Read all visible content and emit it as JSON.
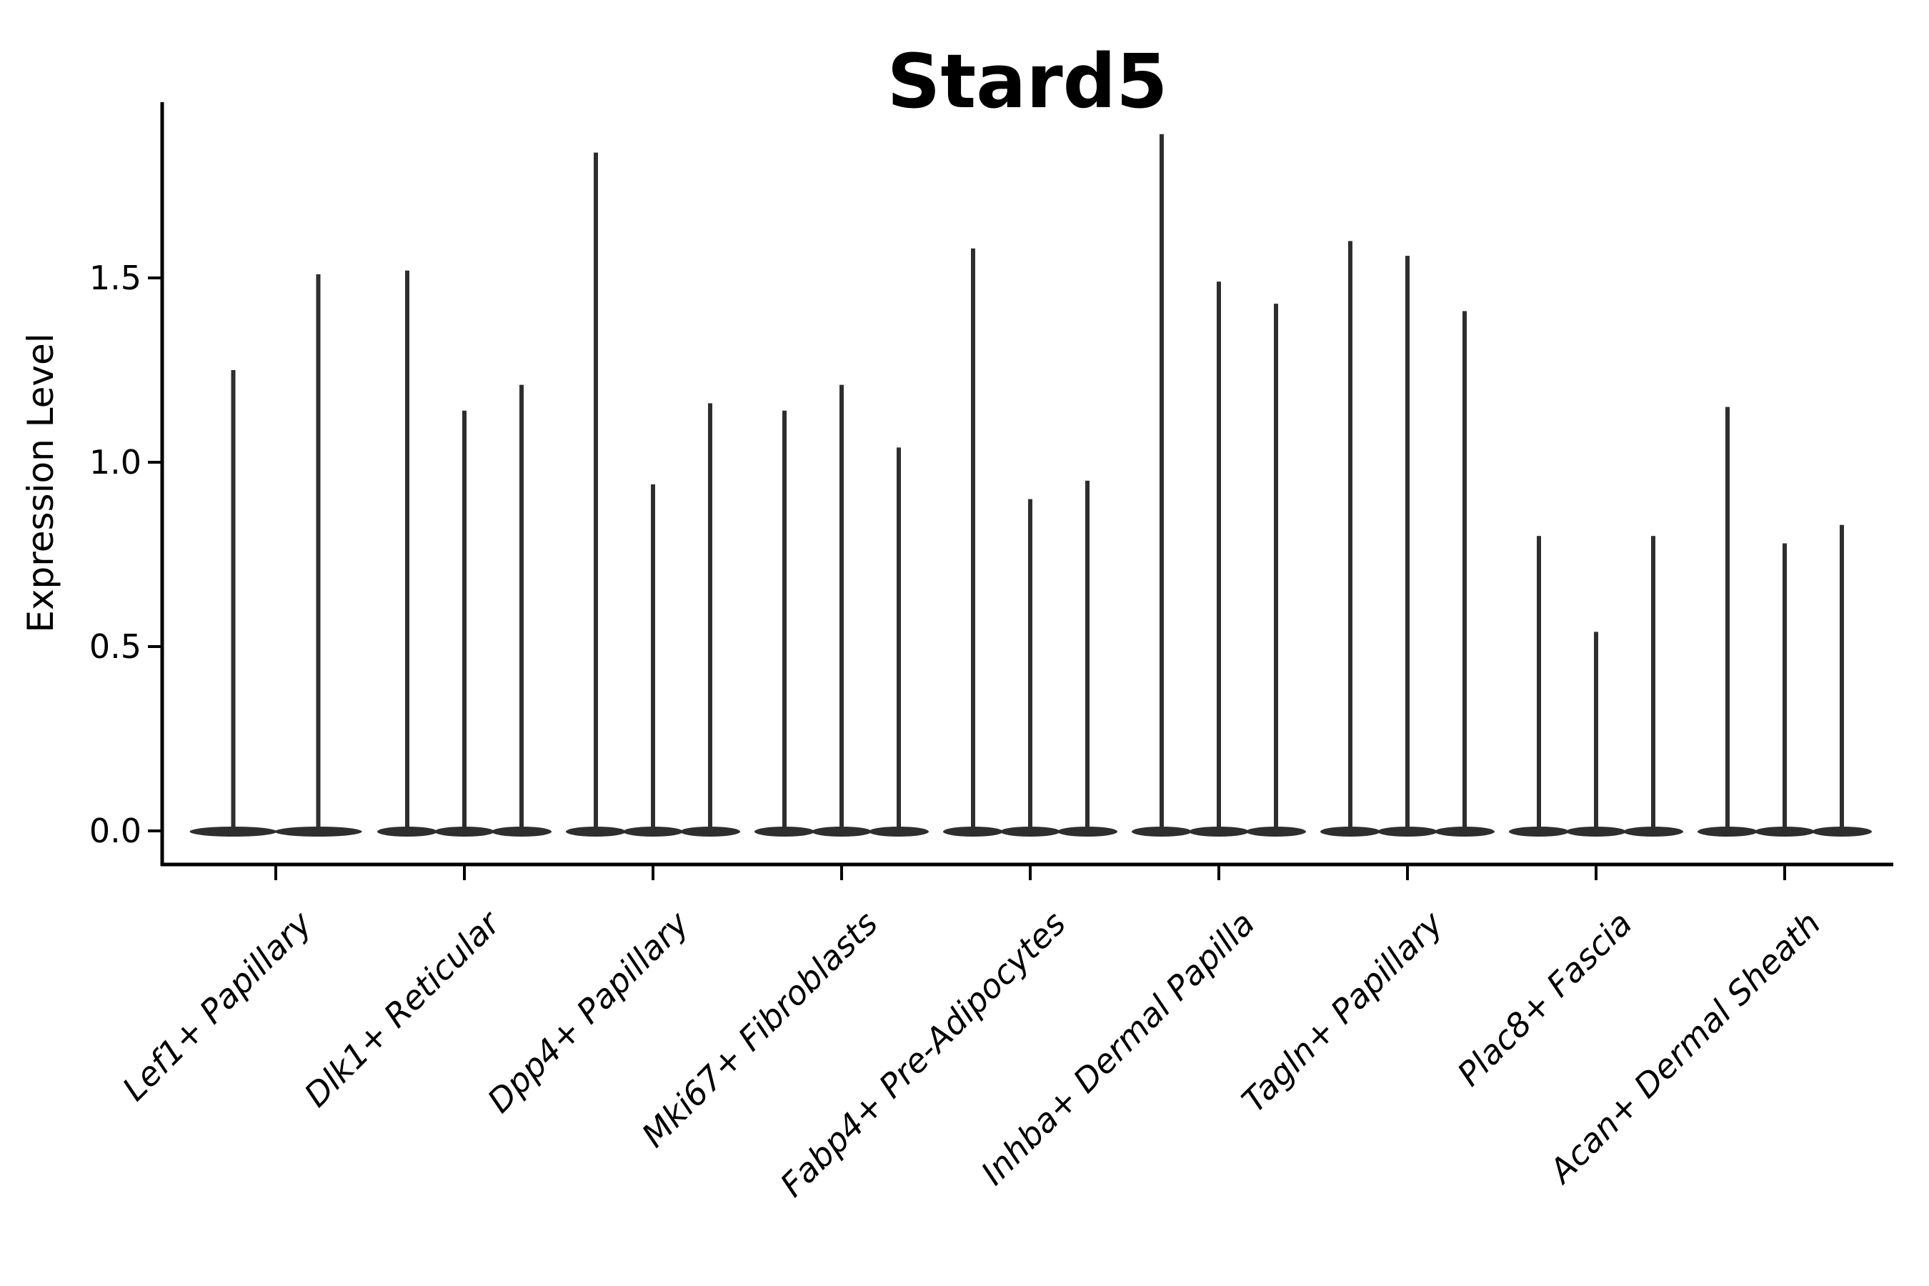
{
  "title": "Stard5",
  "axes": {
    "ylabel": "Expression Level",
    "ytick_labels": [
      "0.0",
      "0.5",
      "1.0",
      "1.5"
    ]
  },
  "colors": {
    "violin": "#2e2e2e",
    "axis": "#000000",
    "background": "#ffffff"
  },
  "chart_data": {
    "type": "violin",
    "title": "Stard5",
    "xlabel": "",
    "ylabel": "Expression Level",
    "ylim": [
      0,
      1.98
    ],
    "yticks": [
      0.0,
      0.5,
      1.0,
      1.5
    ],
    "grid": false,
    "legend": null,
    "violin_shape": "needle (mass at 0 with thin tail up to max)",
    "categories": [
      "Lef1+ Papillary",
      "Dlk1+ Reticular",
      "Dpp4+ Papillary",
      "Mki67+ Fibroblasts",
      "Fabp4+ Pre-Adipocytes",
      "Inhba+ Dermal Papilla",
      "Tagln+ Papillary",
      "Plac8+ Fascia",
      "Acan+ Dermal Sheath"
    ],
    "groups": [
      {
        "category": "Lef1+ Papillary",
        "violin_min": 0,
        "violin_max_values": [
          1.25,
          1.51
        ]
      },
      {
        "category": "Dlk1+ Reticular",
        "violin_min": 0,
        "violin_max_values": [
          1.52,
          1.14,
          1.21
        ]
      },
      {
        "category": "Dpp4+ Papillary",
        "violin_min": 0,
        "violin_max_values": [
          1.84,
          0.94,
          1.16
        ]
      },
      {
        "category": "Mki67+ Fibroblasts",
        "violin_min": 0,
        "violin_max_values": [
          1.14,
          1.21,
          1.04
        ]
      },
      {
        "category": "Fabp4+ Pre-Adipocytes",
        "violin_min": 0,
        "violin_max_values": [
          1.58,
          0.9,
          0.95
        ]
      },
      {
        "category": "Inhba+ Dermal Papilla",
        "violin_min": 0,
        "violin_max_values": [
          1.89,
          1.49,
          1.43
        ]
      },
      {
        "category": "Tagln+ Papillary",
        "violin_min": 0,
        "violin_max_values": [
          1.6,
          1.56,
          1.41
        ]
      },
      {
        "category": "Plac8+ Fascia",
        "violin_min": 0,
        "violin_max_values": [
          0.8,
          0.54,
          0.8
        ]
      },
      {
        "category": "Acan+ Dermal Sheath",
        "violin_min": 0,
        "violin_max_values": [
          1.15,
          0.78,
          0.83
        ]
      }
    ]
  }
}
